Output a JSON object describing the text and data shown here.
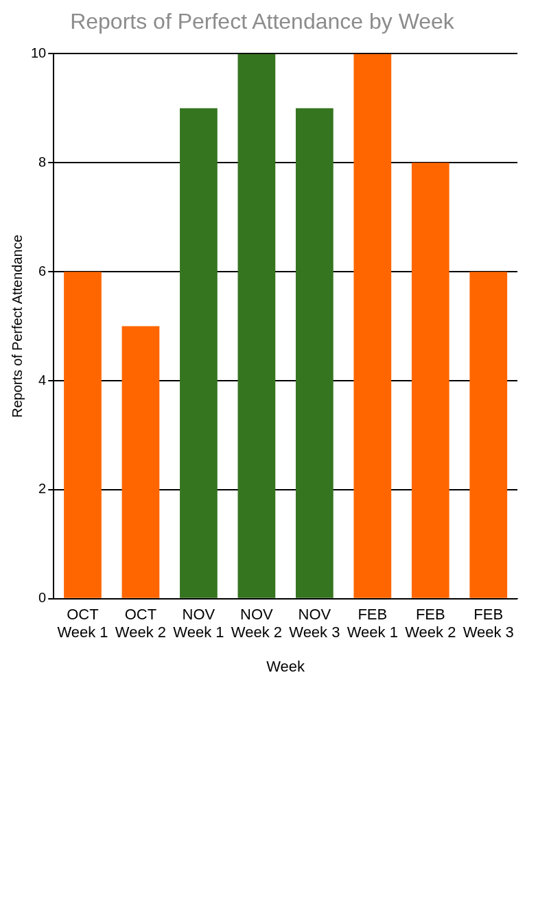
{
  "chart_data": {
    "type": "bar",
    "title": "Reports of Perfect Attendance by Week",
    "xlabel": "Week",
    "ylabel": "Reports of Perfect Attendance",
    "categories": [
      "OCT\nWeek 1",
      "OCT\nWeek 2",
      "NOV\nWeek 1",
      "NOV\nWeek 2",
      "NOV\nWeek 3",
      "FEB\nWeek 1",
      "FEB\nWeek 2",
      "FEB\nWeek 3"
    ],
    "values": [
      6,
      5,
      9,
      10,
      9,
      10,
      8,
      6
    ],
    "colors": [
      "#ff6600",
      "#ff6600",
      "#367520",
      "#367520",
      "#367520",
      "#ff6600",
      "#ff6600",
      "#ff6600"
    ],
    "ylim": [
      0,
      10
    ],
    "yticks": [
      0,
      2,
      4,
      6,
      8,
      10
    ],
    "grid": "y",
    "legend": false
  }
}
